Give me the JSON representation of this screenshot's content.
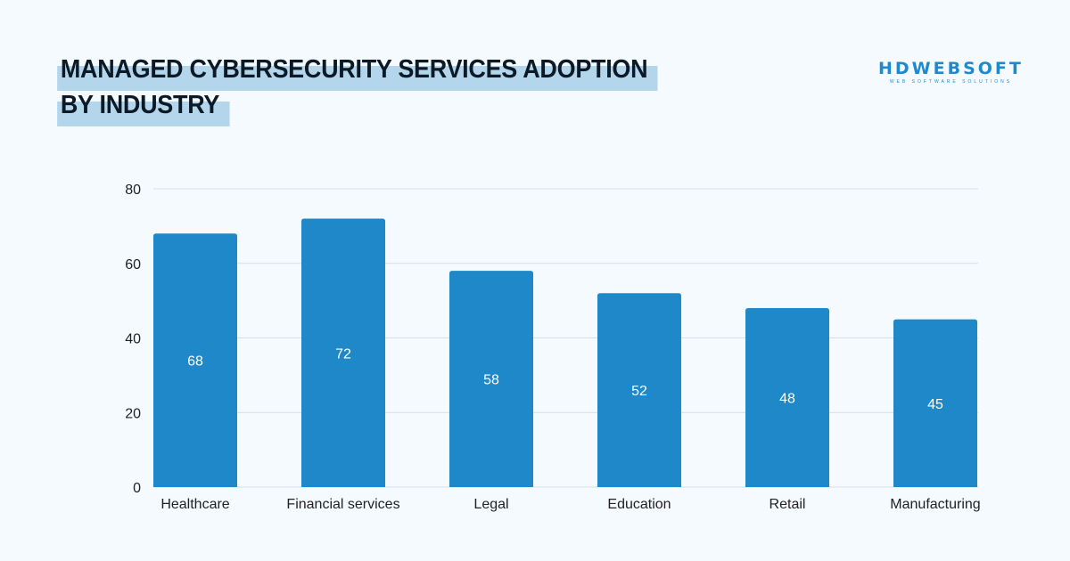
{
  "title_lines": [
    "MANAGED CYBERSECURITY SERVICES ADOPTION",
    "BY INDUSTRY"
  ],
  "logo": {
    "main": "HDWEBSOFT",
    "sub": "WEB SOFTWARE SOLUTIONS"
  },
  "colors": {
    "bar": "#1e88c8",
    "highlight": "#b3d6ec",
    "grid": "#d8dde3"
  },
  "chart_data": {
    "type": "bar",
    "title": "MANAGED CYBERSECURITY SERVICES ADOPTION BY INDUSTRY",
    "categories": [
      "Healthcare",
      "Financial services",
      "Legal",
      "Education",
      "Retail",
      "Manufacturing"
    ],
    "values": [
      68,
      72,
      58,
      52,
      48,
      45
    ],
    "data_labels": true,
    "xlabel": "",
    "ylabel": "",
    "ylim": [
      0,
      80
    ],
    "yticks": [
      0,
      20,
      40,
      60,
      80
    ],
    "grid": true,
    "legend": "none"
  }
}
